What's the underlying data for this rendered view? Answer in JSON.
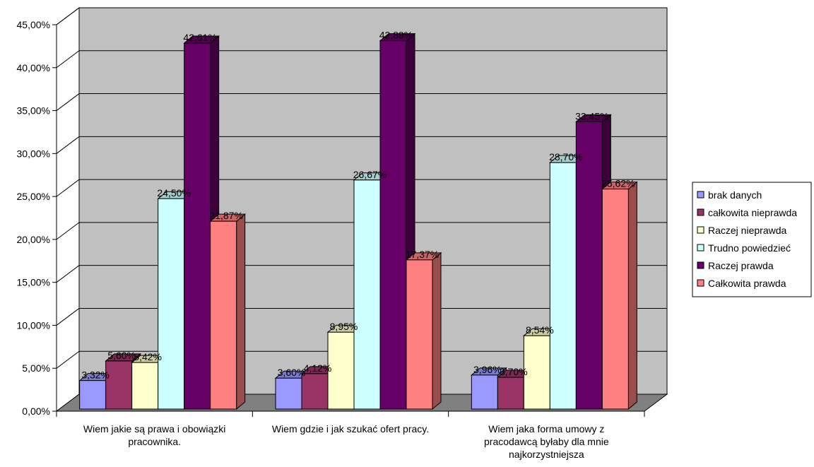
{
  "chart_data": {
    "type": "bar",
    "title": "",
    "xlabel": "",
    "ylabel": "",
    "ylim": [
      0,
      45
    ],
    "ytick_values": [
      0,
      5,
      10,
      15,
      20,
      25,
      30,
      35,
      40,
      45
    ],
    "ytick_labels": [
      "0,00%",
      "5,00%",
      "10,00%",
      "15,00%",
      "20,00%",
      "25,00%",
      "30,00%",
      "35,00%",
      "40,00%",
      "45,00%"
    ],
    "grid": true,
    "legend_position": "right",
    "categories": [
      [
        "Wiem jakie są prawa i obowiązki",
        "pracownika."
      ],
      [
        "Wiem gdzie i jak szukać ofert pracy."
      ],
      [
        "Wiem jaka forma umowy z",
        "pracodawcą byłaby dla mnie",
        "najkorzystniejsza"
      ]
    ],
    "series": [
      {
        "name": "brak danych",
        "color": "#9999ff",
        "values": [
          3.32,
          3.6,
          3.96
        ],
        "labels": [
          "3,32%",
          "3,60%",
          "3,96%"
        ]
      },
      {
        "name": "całkowita nieprawda",
        "color": "#993366",
        "values": [
          5.6,
          4.12,
          3.7
        ],
        "labels": [
          "5,60%",
          "4,12%",
          "3,70%"
        ]
      },
      {
        "name": "Raczej nieprawda",
        "color": "#ffffcc",
        "values": [
          5.42,
          8.95,
          8.54
        ],
        "labels": [
          "5,42%",
          "8,95%",
          "8,54%"
        ]
      },
      {
        "name": "Trudno powiedzieć",
        "color": "#ccffff",
        "values": [
          24.5,
          26.67,
          28.7
        ],
        "labels": [
          "24,50%",
          "26,67%",
          "28,70%"
        ]
      },
      {
        "name": "Raczej prawda",
        "color": "#660066",
        "values": [
          42.61,
          42.89,
          33.45
        ],
        "labels": [
          "42,61%",
          "42,89%",
          "33,45%"
        ]
      },
      {
        "name": "Całkowita prawda",
        "color": "#ff8080",
        "values": [
          21.87,
          17.37,
          25.62
        ],
        "labels": [
          "21,87%",
          "17,37%",
          "25,62%"
        ]
      }
    ]
  }
}
